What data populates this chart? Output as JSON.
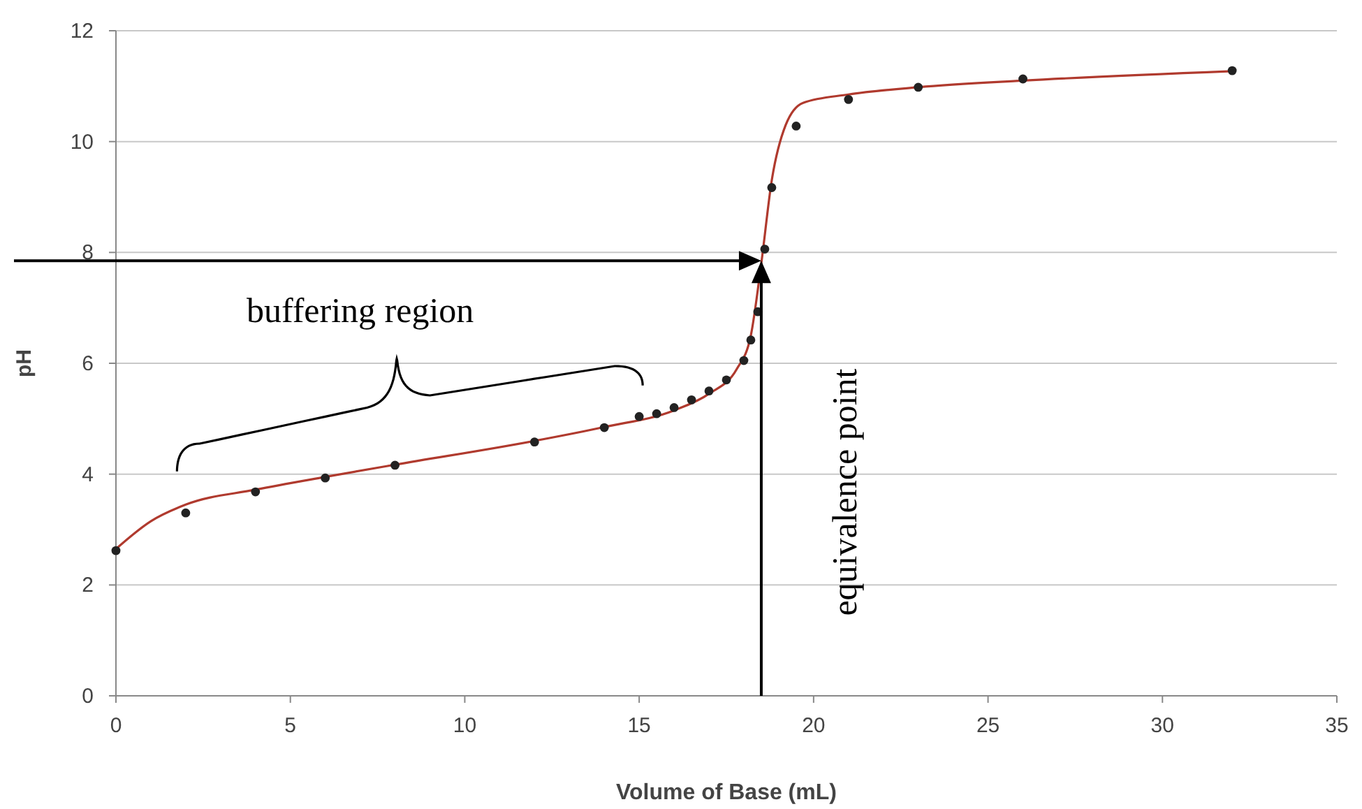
{
  "chart_data": {
    "type": "line",
    "xlabel": "Volume of Base (mL)",
    "ylabel": "pH",
    "xlim": [
      0,
      35
    ],
    "ylim": [
      0,
      12
    ],
    "xticks": [
      0,
      5,
      10,
      15,
      20,
      25,
      30,
      35
    ],
    "yticks": [
      0,
      2,
      4,
      6,
      8,
      10,
      12
    ],
    "grid": "y",
    "series": [
      {
        "color": "#b03a2e",
        "x": [
          0,
          1,
          2,
          4,
          6,
          8,
          12,
          14,
          16,
          17,
          17.8,
          18.2,
          18.5,
          18.8,
          19.2,
          19.7,
          21,
          23,
          26,
          32
        ],
        "values": [
          2.65,
          3.15,
          3.45,
          3.72,
          3.95,
          4.17,
          4.6,
          4.85,
          5.15,
          5.45,
          5.9,
          6.5,
          7.8,
          9.3,
          10.3,
          10.7,
          10.85,
          10.98,
          11.1,
          11.27
        ]
      },
      {
        "type": "scatter",
        "marker": "circle",
        "color": "#222222",
        "x": [
          0,
          2,
          4,
          6,
          8,
          12,
          14,
          15,
          15.5,
          16,
          16.5,
          17,
          17.5,
          18,
          18.2,
          18.4,
          18.6,
          18.8,
          19.5,
          21,
          23,
          26,
          32
        ],
        "values": [
          2.62,
          3.3,
          3.68,
          3.93,
          4.16,
          4.58,
          4.84,
          5.04,
          5.09,
          5.2,
          5.34,
          5.5,
          5.7,
          6.05,
          6.42,
          6.93,
          8.06,
          9.17,
          10.28,
          10.76,
          10.98,
          11.13,
          11.28
        ]
      }
    ],
    "ref_lines": [
      {
        "axis": "x",
        "value": 18.5,
        "label": "equivalence point"
      },
      {
        "axis": "y",
        "value": 7.85
      }
    ],
    "annotations": [
      "buffering region"
    ]
  }
}
